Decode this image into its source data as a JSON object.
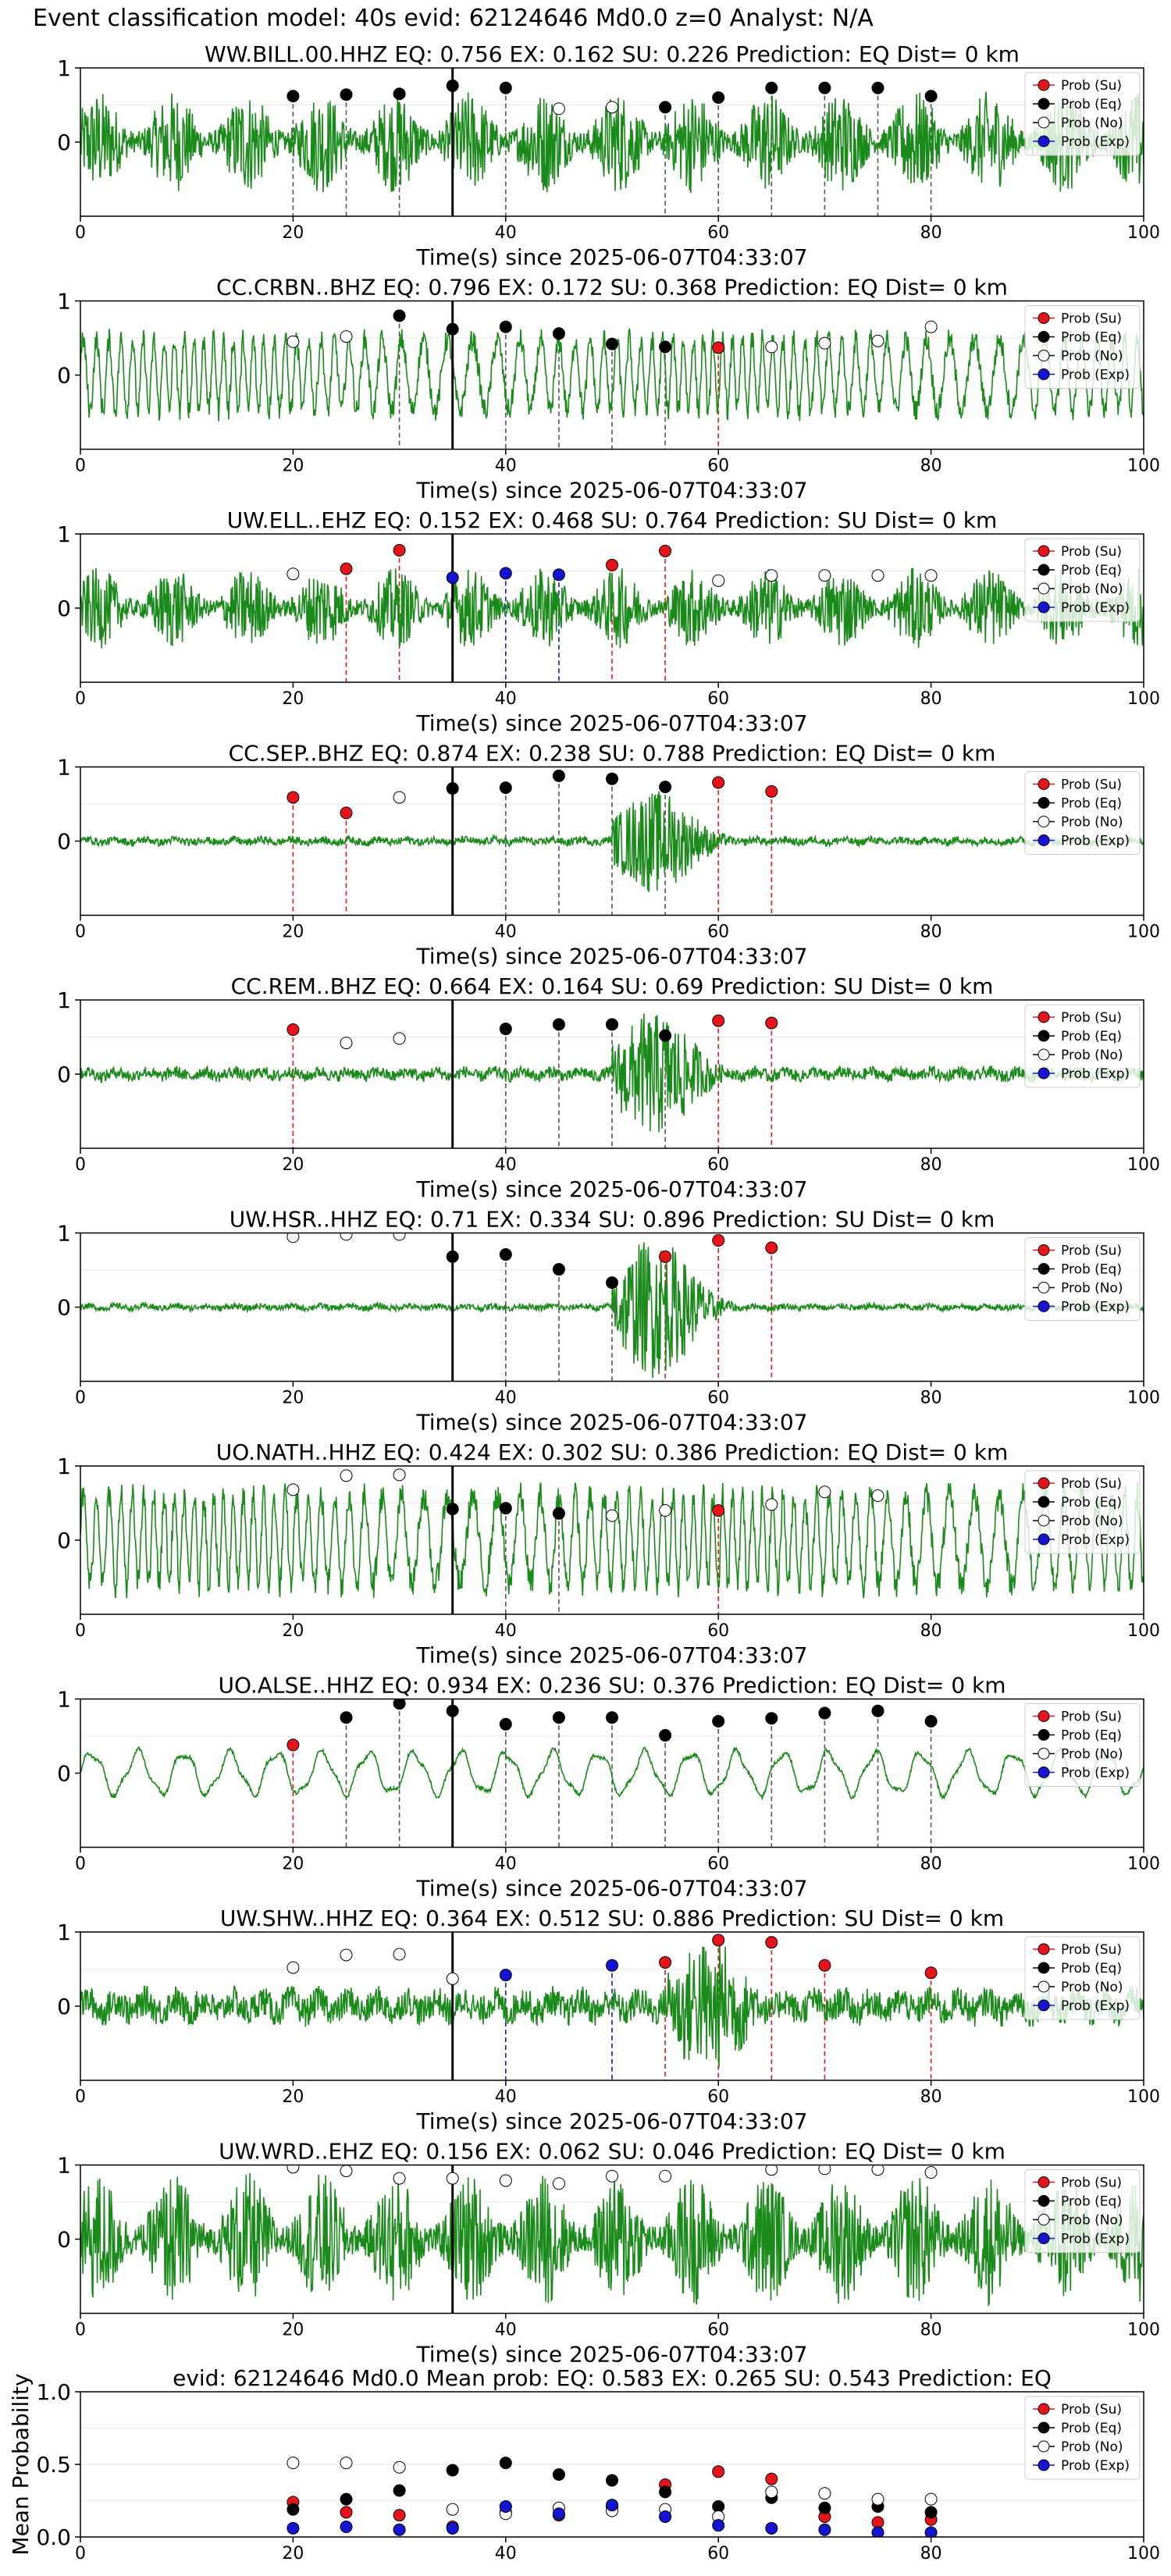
{
  "header": "Event classification model: 40s evid: 62124646 Md0.0 z=0 Analyst: N/A",
  "legend_labels": [
    "Prob (Su)",
    "Prob (Eq)",
    "Prob (No)",
    "Prob (Exp)"
  ],
  "colors": {
    "su": "#e8141c",
    "eq": "#000000",
    "no": "#ffffff",
    "exp": "#1414d2",
    "trace": "#1a8a1a",
    "pick": "#000000"
  },
  "chart_data": [
    {
      "type": "line",
      "title": "WW.BILL.00.HHZ   EQ: 0.756  EX: 0.162  SU: 0.226   Prediction: EQ    Dist= 0 km",
      "xlabel": "Time(s) since 2025-06-07T04:33:07",
      "xlim": [
        0,
        100
      ],
      "ylim": [
        -1,
        1
      ],
      "xticks": [
        0,
        20,
        40,
        60,
        80,
        100
      ],
      "yticks": [
        0,
        1
      ],
      "pick": 35,
      "trace_style": "noisy",
      "trace_amplitude": 0.7,
      "legend": "right",
      "points": {
        "su": [],
        "eq": [
          [
            20,
            0.62
          ],
          [
            25,
            0.64
          ],
          [
            30,
            0.65
          ],
          [
            35,
            0.76
          ],
          [
            40,
            0.73
          ],
          [
            55,
            0.47
          ],
          [
            60,
            0.6
          ],
          [
            65,
            0.73
          ],
          [
            70,
            0.73
          ],
          [
            75,
            0.73
          ],
          [
            80,
            0.62
          ]
        ],
        "no": [
          [
            45,
            0.45
          ],
          [
            50,
            0.47
          ]
        ],
        "exp": []
      }
    },
    {
      "type": "line",
      "title": "CC.CRBN..BHZ   EQ: 0.796  EX: 0.172  SU: 0.368   Prediction: EQ    Dist= 0 km",
      "xlabel": "Time(s) since 2025-06-07T04:33:07",
      "xlim": [
        0,
        100
      ],
      "ylim": [
        -1,
        1
      ],
      "xticks": [
        0,
        20,
        40,
        60,
        80,
        100
      ],
      "yticks": [
        0,
        1
      ],
      "pick": 35,
      "trace_style": "oscillating",
      "trace_amplitude": 0.6,
      "legend": "right",
      "points": {
        "su": [
          [
            60,
            0.37
          ]
        ],
        "eq": [
          [
            30,
            0.8
          ],
          [
            35,
            0.62
          ],
          [
            40,
            0.65
          ],
          [
            45,
            0.56
          ],
          [
            50,
            0.42
          ],
          [
            55,
            0.38
          ]
        ],
        "no": [
          [
            20,
            0.45
          ],
          [
            25,
            0.52
          ],
          [
            65,
            0.38
          ],
          [
            70,
            0.43
          ],
          [
            75,
            0.46
          ],
          [
            80,
            0.65
          ]
        ],
        "exp": []
      }
    },
    {
      "type": "line",
      "title": "UW.ELL..EHZ   EQ: 0.152  EX: 0.468  SU: 0.764   Prediction: SU    Dist= 0 km",
      "xlabel": "Time(s) since 2025-06-07T04:33:07",
      "xlim": [
        0,
        100
      ],
      "ylim": [
        -1,
        1
      ],
      "xticks": [
        0,
        20,
        40,
        60,
        80,
        100
      ],
      "yticks": [
        0,
        1
      ],
      "pick": 35,
      "trace_style": "noisy",
      "trace_amplitude": 0.55,
      "legend": "right",
      "points": {
        "su": [
          [
            25,
            0.53
          ],
          [
            30,
            0.78
          ],
          [
            50,
            0.58
          ],
          [
            55,
            0.77
          ]
        ],
        "eq": [],
        "no": [
          [
            20,
            0.46
          ],
          [
            60,
            0.37
          ],
          [
            65,
            0.44
          ],
          [
            70,
            0.44
          ],
          [
            75,
            0.44
          ],
          [
            80,
            0.44
          ]
        ],
        "exp": [
          [
            35,
            0.41
          ],
          [
            40,
            0.47
          ],
          [
            45,
            0.45
          ]
        ]
      }
    },
    {
      "type": "line",
      "title": "CC.SEP..BHZ   EQ: 0.874  EX: 0.238  SU: 0.788   Prediction: EQ    Dist= 0 km",
      "xlabel": "Time(s) since 2025-06-07T04:33:07",
      "xlim": [
        0,
        100
      ],
      "ylim": [
        -1,
        1
      ],
      "xticks": [
        0,
        20,
        40,
        60,
        80,
        100
      ],
      "yticks": [
        0,
        1
      ],
      "pick": 35,
      "trace_style": "burst",
      "trace_amplitude": 0.05,
      "burst_start": 50,
      "burst_amplitude": 0.7,
      "legend": "right",
      "points": {
        "su": [
          [
            20,
            0.59
          ],
          [
            25,
            0.38
          ],
          [
            60,
            0.79
          ],
          [
            65,
            0.67
          ]
        ],
        "eq": [
          [
            35,
            0.71
          ],
          [
            40,
            0.72
          ],
          [
            45,
            0.88
          ],
          [
            50,
            0.84
          ],
          [
            55,
            0.73
          ]
        ],
        "no": [
          [
            30,
            0.59
          ]
        ],
        "exp": []
      }
    },
    {
      "type": "line",
      "title": "CC.REM..BHZ   EQ: 0.664  EX: 0.164  SU: 0.69   Prediction: SU    Dist= 0 km",
      "xlabel": "Time(s) since 2025-06-07T04:33:07",
      "xlim": [
        0,
        100
      ],
      "ylim": [
        -1,
        1
      ],
      "xticks": [
        0,
        20,
        40,
        60,
        80,
        100
      ],
      "yticks": [
        0,
        1
      ],
      "pick": 35,
      "trace_style": "burst",
      "trace_amplitude": 0.08,
      "burst_start": 50,
      "burst_amplitude": 0.85,
      "legend": "right",
      "points": {
        "su": [
          [
            20,
            0.6
          ],
          [
            60,
            0.72
          ],
          [
            65,
            0.69
          ]
        ],
        "eq": [
          [
            40,
            0.61
          ],
          [
            45,
            0.67
          ],
          [
            50,
            0.67
          ],
          [
            55,
            0.52
          ]
        ],
        "no": [
          [
            25,
            0.42
          ],
          [
            30,
            0.48
          ]
        ],
        "exp": []
      }
    },
    {
      "type": "line",
      "title": "UW.HSR..HHZ   EQ: 0.71  EX: 0.334  SU: 0.896   Prediction: SU    Dist= 0 km",
      "xlabel": "Time(s) since 2025-06-07T04:33:07",
      "xlim": [
        0,
        100
      ],
      "ylim": [
        -1,
        1
      ],
      "xticks": [
        0,
        20,
        40,
        60,
        80,
        100
      ],
      "yticks": [
        0,
        1
      ],
      "pick": 35,
      "trace_style": "burst",
      "trace_amplitude": 0.04,
      "burst_start": 50,
      "burst_amplitude": 0.95,
      "legend": "right",
      "points": {
        "su": [
          [
            55,
            0.68
          ],
          [
            60,
            0.9
          ],
          [
            65,
            0.8
          ]
        ],
        "eq": [
          [
            35,
            0.68
          ],
          [
            40,
            0.71
          ],
          [
            45,
            0.51
          ],
          [
            50,
            0.33
          ]
        ],
        "no": [
          [
            20,
            0.95
          ],
          [
            25,
            0.98
          ],
          [
            30,
            0.98
          ]
        ],
        "exp": []
      }
    },
    {
      "type": "line",
      "title": "UO.NATH..HHZ   EQ: 0.424  EX: 0.302  SU: 0.386   Prediction: EQ    Dist= 0 km",
      "xlabel": "Time(s) since 2025-06-07T04:33:07",
      "xlim": [
        0,
        100
      ],
      "ylim": [
        -1,
        1
      ],
      "xticks": [
        0,
        20,
        40,
        60,
        80,
        100
      ],
      "yticks": [
        0,
        1
      ],
      "pick": 35,
      "trace_style": "oscillating",
      "trace_amplitude": 0.75,
      "legend": "right",
      "points": {
        "su": [
          [
            60,
            0.4
          ]
        ],
        "eq": [
          [
            35,
            0.42
          ],
          [
            40,
            0.43
          ],
          [
            45,
            0.36
          ]
        ],
        "no": [
          [
            20,
            0.68
          ],
          [
            25,
            0.87
          ],
          [
            30,
            0.88
          ],
          [
            50,
            0.33
          ],
          [
            55,
            0.4
          ],
          [
            65,
            0.48
          ],
          [
            70,
            0.65
          ],
          [
            75,
            0.6
          ]
        ],
        "exp": []
      }
    },
    {
      "type": "line",
      "title": "UO.ALSE..HHZ   EQ: 0.934  EX: 0.236  SU: 0.376   Prediction: EQ    Dist= 0 km",
      "xlabel": "Time(s) since 2025-06-07T04:33:07",
      "xlim": [
        0,
        100
      ],
      "ylim": [
        -1,
        1
      ],
      "xticks": [
        0,
        20,
        40,
        60,
        80,
        100
      ],
      "yticks": [
        0,
        1
      ],
      "pick": 35,
      "trace_style": "smooth",
      "trace_amplitude": 0.3,
      "legend": "right",
      "points": {
        "su": [
          [
            20,
            0.38
          ]
        ],
        "eq": [
          [
            25,
            0.75
          ],
          [
            30,
            0.94
          ],
          [
            35,
            0.84
          ],
          [
            40,
            0.66
          ],
          [
            45,
            0.75
          ],
          [
            50,
            0.75
          ],
          [
            55,
            0.51
          ],
          [
            60,
            0.7
          ],
          [
            65,
            0.74
          ],
          [
            70,
            0.81
          ],
          [
            75,
            0.84
          ],
          [
            80,
            0.7
          ]
        ],
        "no": [],
        "exp": []
      }
    },
    {
      "type": "line",
      "title": "UW.SHW..HHZ   EQ: 0.364  EX: 0.512  SU: 0.886   Prediction: SU    Dist= 0 km",
      "xlabel": "Time(s) since 2025-06-07T04:33:07",
      "xlim": [
        0,
        100
      ],
      "ylim": [
        -1,
        1
      ],
      "xticks": [
        0,
        20,
        40,
        60,
        80,
        100
      ],
      "yticks": [
        0,
        1
      ],
      "pick": 35,
      "trace_style": "burst",
      "trace_amplitude": 0.2,
      "burst_start": 55,
      "burst_amplitude": 0.9,
      "legend": "right",
      "points": {
        "su": [
          [
            55,
            0.59
          ],
          [
            60,
            0.89
          ],
          [
            65,
            0.86
          ],
          [
            70,
            0.55
          ],
          [
            80,
            0.45
          ]
        ],
        "eq": [],
        "no": [
          [
            20,
            0.52
          ],
          [
            25,
            0.69
          ],
          [
            30,
            0.7
          ],
          [
            35,
            0.37
          ]
        ],
        "exp": [
          [
            40,
            0.42
          ],
          [
            50,
            0.55
          ]
        ]
      }
    },
    {
      "type": "line",
      "title": "UW.WRD..EHZ   EQ: 0.156  EX: 0.062  SU: 0.046   Prediction: EQ    Dist= 0 km",
      "xlabel": "Time(s) since 2025-06-07T04:33:07",
      "xlim": [
        0,
        100
      ],
      "ylim": [
        -1,
        1
      ],
      "xticks": [
        0,
        20,
        40,
        60,
        80,
        100
      ],
      "yticks": [
        0,
        1
      ],
      "pick": 35,
      "trace_style": "noisy",
      "trace_amplitude": 0.9,
      "legend": "right",
      "points": {
        "su": [],
        "eq": [],
        "no": [
          [
            20,
            0.97
          ],
          [
            25,
            0.92
          ],
          [
            30,
            0.82
          ],
          [
            35,
            0.82
          ],
          [
            40,
            0.79
          ],
          [
            45,
            0.75
          ],
          [
            50,
            0.85
          ],
          [
            55,
            0.85
          ],
          [
            65,
            0.94
          ],
          [
            70,
            0.95
          ],
          [
            75,
            0.94
          ],
          [
            80,
            0.9
          ]
        ],
        "exp": []
      }
    },
    {
      "type": "scatter",
      "title": "evid: 62124646   Md0.0   Mean prob:   EQ: 0.583  EX: 0.265  SU: 0.543   Prediction: EQ",
      "ylabel": "Mean Probability",
      "xlim": [
        0,
        100
      ],
      "ylim": [
        0,
        1
      ],
      "xticks": [
        0,
        20,
        40,
        60,
        80,
        100
      ],
      "yticks": [
        0.0,
        0.5,
        1.0
      ],
      "ytick_labels": [
        "0.0",
        "0.5",
        "1.0"
      ],
      "legend": "right",
      "points": {
        "su": [
          [
            20,
            0.24
          ],
          [
            25,
            0.17
          ],
          [
            30,
            0.15
          ],
          [
            35,
            0.07
          ],
          [
            40,
            0.17
          ],
          [
            45,
            0.15
          ],
          [
            50,
            0.21
          ],
          [
            55,
            0.36
          ],
          [
            60,
            0.45
          ],
          [
            65,
            0.4
          ],
          [
            70,
            0.14
          ],
          [
            75,
            0.1
          ],
          [
            80,
            0.12
          ]
        ],
        "eq": [
          [
            20,
            0.19
          ],
          [
            25,
            0.26
          ],
          [
            30,
            0.32
          ],
          [
            35,
            0.46
          ],
          [
            40,
            0.51
          ],
          [
            45,
            0.43
          ],
          [
            50,
            0.39
          ],
          [
            55,
            0.31
          ],
          [
            60,
            0.21
          ],
          [
            65,
            0.27
          ],
          [
            70,
            0.2
          ],
          [
            75,
            0.21
          ],
          [
            80,
            0.17
          ]
        ],
        "no": [
          [
            20,
            0.51
          ],
          [
            25,
            0.51
          ],
          [
            30,
            0.48
          ],
          [
            35,
            0.19
          ],
          [
            40,
            0.16
          ],
          [
            45,
            0.2
          ],
          [
            50,
            0.18
          ],
          [
            55,
            0.19
          ],
          [
            60,
            0.14
          ],
          [
            65,
            0.31
          ],
          [
            70,
            0.3
          ],
          [
            75,
            0.26
          ],
          [
            80,
            0.26
          ]
        ],
        "exp": [
          [
            20,
            0.06
          ],
          [
            25,
            0.07
          ],
          [
            30,
            0.05
          ],
          [
            35,
            0.06
          ],
          [
            40,
            0.21
          ],
          [
            45,
            0.16
          ],
          [
            50,
            0.22
          ],
          [
            55,
            0.14
          ],
          [
            60,
            0.08
          ],
          [
            65,
            0.06
          ],
          [
            70,
            0.05
          ],
          [
            75,
            0.03
          ],
          [
            80,
            0.03
          ]
        ]
      }
    }
  ]
}
